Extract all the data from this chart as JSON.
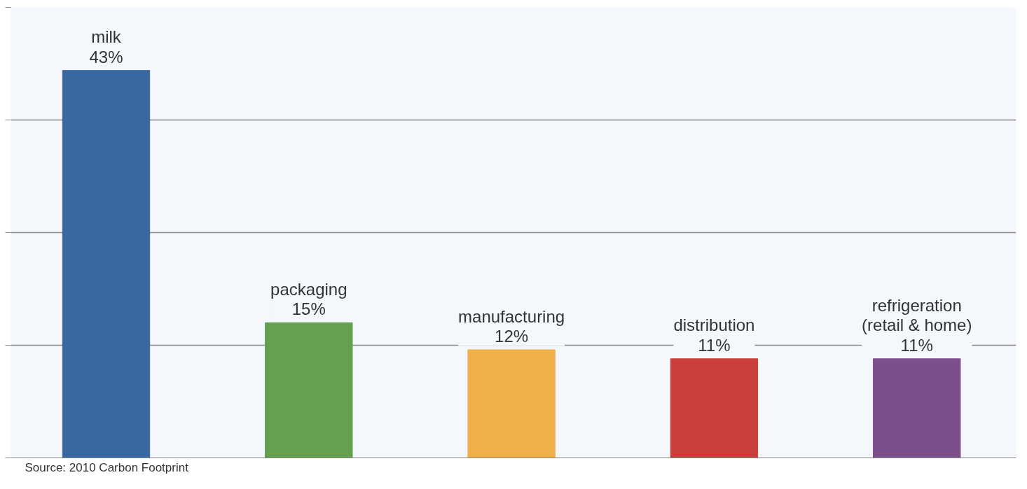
{
  "chart_data": {
    "type": "bar",
    "categories": [
      "milk",
      "packaging",
      "manufacturing",
      "distribution",
      "refrigeration (retail & home)"
    ],
    "values": [
      43,
      15,
      12,
      11,
      11
    ],
    "colors": [
      "#3b67a1",
      "#63a04f",
      "#efb04a",
      "#cb3f3a",
      "#7d4e8c"
    ],
    "value_labels": [
      "43%",
      "15%",
      "12%",
      "11%",
      "11%"
    ],
    "ylim": [
      0,
      50
    ],
    "yticks": [
      {
        "value": 0,
        "label": null
      },
      {
        "value": 12.5,
        "label": null
      },
      {
        "value": 25,
        "label": null
      },
      {
        "value": 37.5,
        "label": null
      },
      {
        "value": 50,
        "label": null
      }
    ],
    "grid": "y",
    "tick_labels": false,
    "annotations": [
      "Source: 2010 Carbon Footprint"
    ]
  }
}
